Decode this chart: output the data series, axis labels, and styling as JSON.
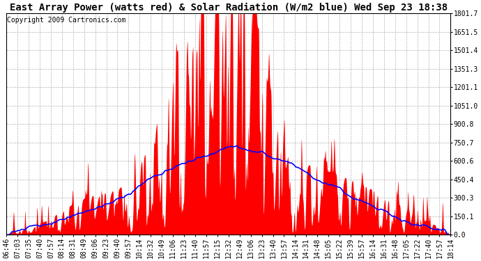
{
  "title": "East Array Power (watts red) & Solar Radiation (W/m2 blue) Wed Sep 23 18:38",
  "copyright": "Copyright 2009 Cartronics.com",
  "y_ticks": [
    0.0,
    150.1,
    300.3,
    450.4,
    600.6,
    750.7,
    900.8,
    1051.0,
    1201.1,
    1351.3,
    1501.4,
    1651.5,
    1801.7
  ],
  "x_labels": [
    "06:46",
    "07:03",
    "07:35",
    "07:40",
    "07:57",
    "08:14",
    "08:31",
    "08:49",
    "09:06",
    "09:23",
    "09:40",
    "09:57",
    "10:14",
    "10:32",
    "10:49",
    "11:06",
    "11:23",
    "11:40",
    "11:57",
    "12:15",
    "12:32",
    "12:49",
    "13:06",
    "13:23",
    "13:40",
    "13:57",
    "14:14",
    "14:31",
    "14:48",
    "15:05",
    "15:22",
    "15:39",
    "15:57",
    "16:14",
    "16:31",
    "16:48",
    "17:05",
    "17:22",
    "17:40",
    "17:57",
    "18:14"
  ],
  "y_max": 1801.7,
  "y_min": 0.0,
  "bg_color": "#ffffff",
  "plot_bg_color": "#ffffff",
  "grid_color": "#aaaaaa",
  "red_color": "#ff0000",
  "blue_color": "#0000ff",
  "title_fontsize": 10,
  "tick_fontsize": 7,
  "copyright_fontsize": 7
}
